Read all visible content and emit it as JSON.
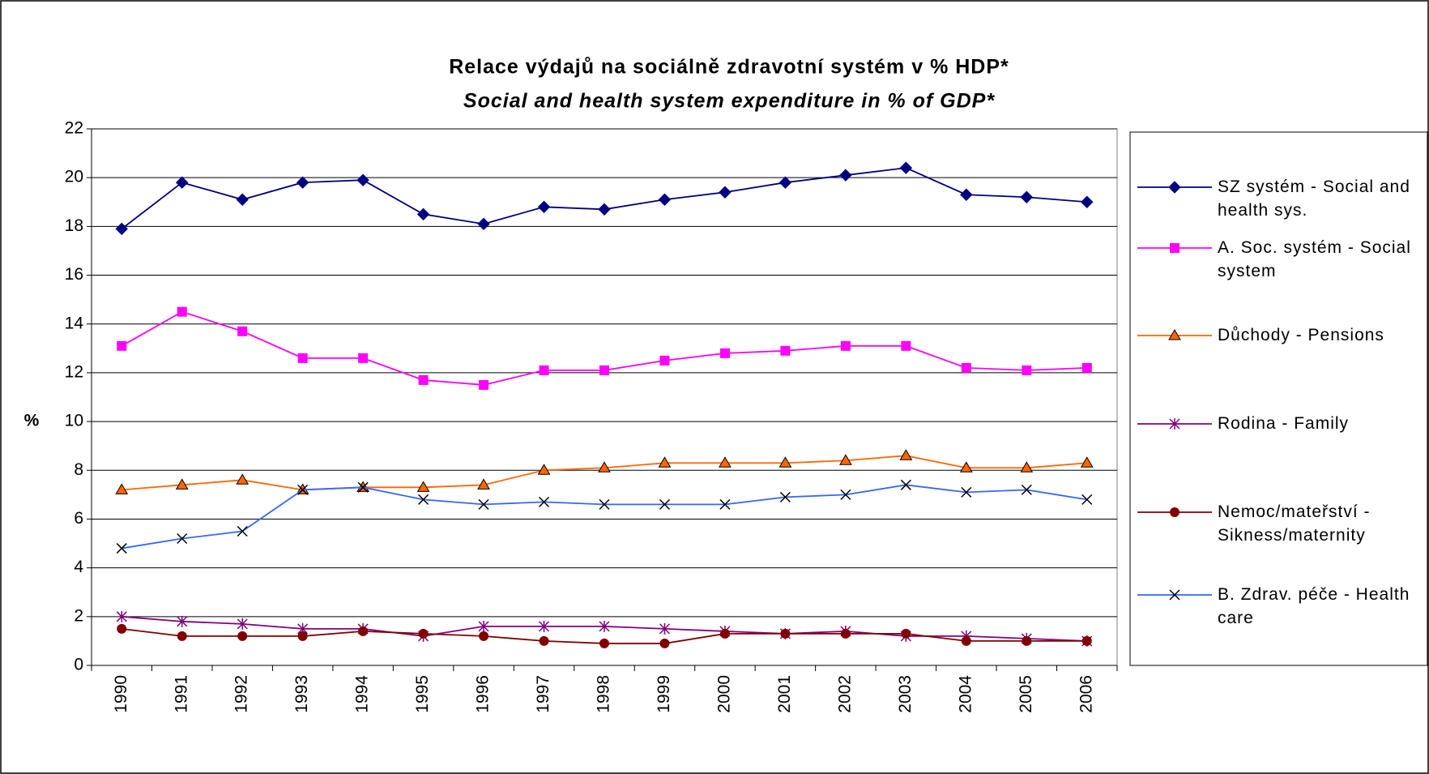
{
  "chart_data": {
    "type": "line",
    "title": "Relace výdajů na sociálně zdravotní systém v % HDP*",
    "subtitle": "Social and health system expenditure in % of GDP*",
    "y_label": "%",
    "categories": [
      "1990",
      "1991",
      "1992",
      "1993",
      "1994",
      "1995",
      "1996",
      "1997",
      "1998",
      "1999",
      "2000",
      "2001",
      "2002",
      "2003",
      "2004",
      "2005",
      "2006"
    ],
    "ylim": [
      0,
      22
    ],
    "yticks": [
      0,
      2,
      4,
      6,
      8,
      10,
      12,
      14,
      16,
      18,
      20,
      22
    ],
    "grid": true,
    "legend": "right",
    "series": [
      {
        "name": "SZ systém - Social and health sys.",
        "color": "#000080",
        "marker": "diamond",
        "values": [
          17.9,
          19.8,
          19.1,
          19.8,
          19.9,
          18.5,
          18.1,
          18.8,
          18.7,
          19.1,
          19.4,
          19.8,
          20.1,
          20.4,
          19.3,
          19.2,
          19.0
        ]
      },
      {
        "name": "A. Soc. systém - Social system",
        "color": "#ff00ff",
        "marker": "square",
        "values": [
          13.1,
          14.5,
          13.7,
          12.6,
          12.6,
          11.7,
          11.5,
          12.1,
          12.1,
          12.5,
          12.8,
          12.9,
          13.1,
          13.1,
          12.2,
          12.1,
          12.2
        ]
      },
      {
        "name": "Důchody - Pensions",
        "color": "#ff6600",
        "marker": "triangle",
        "values": [
          7.2,
          7.4,
          7.6,
          7.2,
          7.3,
          7.3,
          7.4,
          8.0,
          8.1,
          8.3,
          8.3,
          8.3,
          8.4,
          8.6,
          8.1,
          8.1,
          8.3
        ]
      },
      {
        "name": "Rodina - Family",
        "color": "#800080",
        "marker": "asterisk",
        "values": [
          2.0,
          1.8,
          1.7,
          1.5,
          1.5,
          1.2,
          1.6,
          1.6,
          1.6,
          1.5,
          1.4,
          1.3,
          1.4,
          1.2,
          1.2,
          1.1,
          1.0
        ]
      },
      {
        "name": "Nemoc/mateřství - Sikness/maternity",
        "color": "#800000",
        "marker": "circle",
        "values": [
          1.5,
          1.2,
          1.2,
          1.2,
          1.4,
          1.3,
          1.2,
          1.0,
          0.9,
          0.9,
          1.3,
          1.3,
          1.3,
          1.3,
          1.0,
          1.0,
          1.0
        ]
      },
      {
        "name": "B. Zdrav. péče - Health care",
        "color": "#3366ff",
        "marker": "x",
        "values": [
          4.8,
          5.2,
          5.5,
          7.2,
          7.3,
          6.8,
          6.6,
          6.7,
          6.6,
          6.6,
          6.6,
          6.9,
          7.0,
          7.4,
          7.1,
          7.2,
          6.8
        ]
      }
    ]
  }
}
